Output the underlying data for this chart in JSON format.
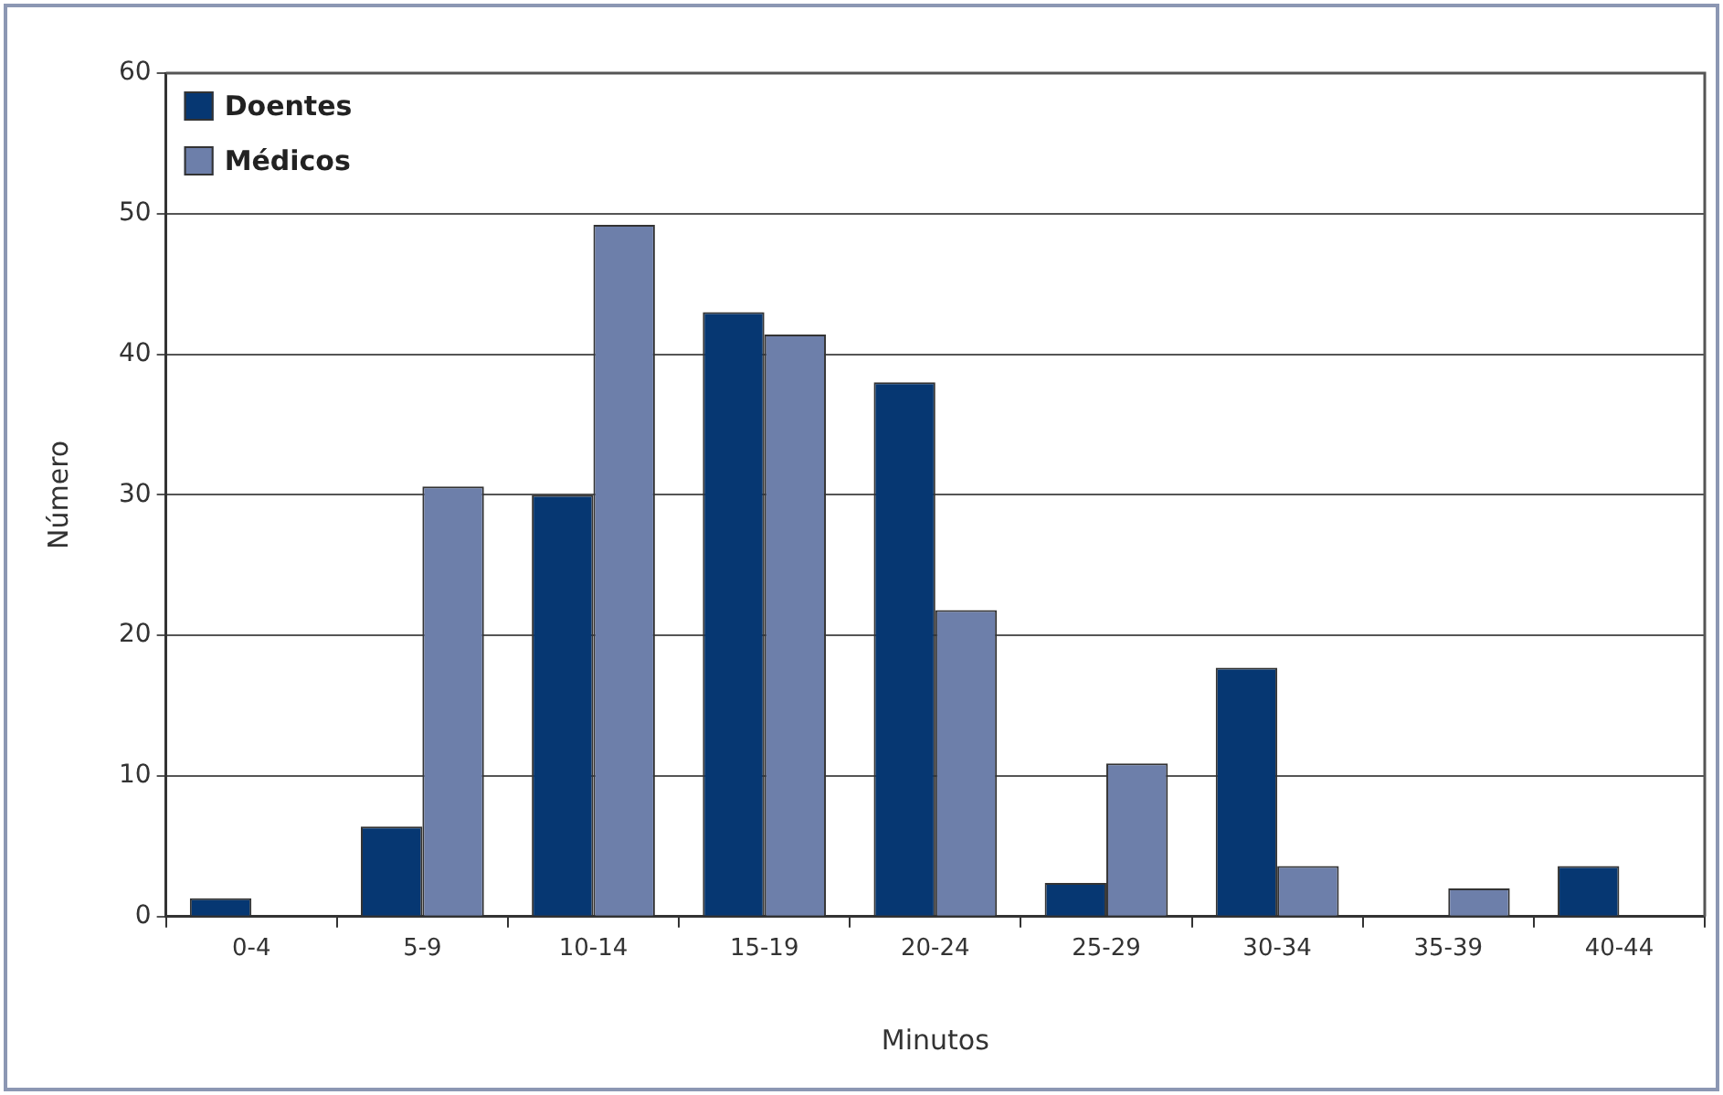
{
  "chart_data": {
    "type": "bar",
    "xlabel": "Minutos",
    "ylabel": "Número",
    "categories": [
      "0-4",
      "5-9",
      "10-14",
      "15-19",
      "20-24",
      "25-29",
      "30-34",
      "35-39",
      "40-44"
    ],
    "series": [
      {
        "name": "Doentes",
        "color": "#063772",
        "values": [
          1.3,
          6.4,
          30,
          43,
          38,
          2.4,
          17.7,
          0,
          3.6
        ]
      },
      {
        "name": "Médicos",
        "color": "#6d7faa",
        "values": [
          0,
          30.6,
          49.2,
          41.4,
          21.8,
          10.9,
          3.6,
          2,
          0
        ]
      }
    ],
    "ylim": [
      0,
      60
    ],
    "yticks": [
      0,
      10,
      20,
      30,
      40,
      50,
      60
    ],
    "grid": "y",
    "legend": "top left"
  }
}
